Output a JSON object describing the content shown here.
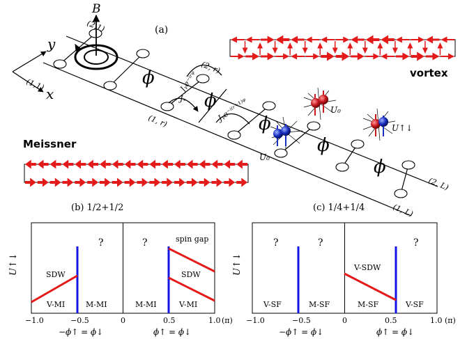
{
  "panel_a": {
    "label": "(a)",
    "axis_b": "B",
    "axis_y": "y",
    "axis_x": "x",
    "flux": "ϕ",
    "site_11": "(1,1)",
    "site_21": "(2,1)",
    "site_1r": "(1, r)",
    "site_2r": "(2, r)",
    "site_1L": "(1, L)",
    "site_2L": "(2, L)",
    "hop_upper": "Jᵧe⁻ⁱʳᵠ",
    "hop_rung": "Jₓ",
    "hop_lower": "Jᵧe⁻ⁱ⁽ʳ⁺¹⁾ᵠ",
    "u0_top": "U₀",
    "u0_bottom": "U₀",
    "u_updown": "U↑↓",
    "vortex_label": "vortex",
    "meissner_label": "Meissner"
  },
  "panel_b": {
    "title": "(b)   1/2+1/2",
    "ylabel": "U↑↓",
    "xlabel_left": "−ϕ↑ = ϕ↓",
    "xlabel_right": "ϕ↑ = ϕ↓",
    "ticks": [
      "−1.0",
      "−0.5",
      "0",
      "0.5",
      "1.0"
    ],
    "unit": "(π)",
    "regions": {
      "q_left": "?",
      "q_right": "?",
      "sdw_left": "SDW",
      "vmi_left": "V-MI",
      "mmi_left": "M-MI",
      "mmi_right": "M-MI",
      "vmi_right": "V-MI",
      "sdw_right": "SDW",
      "spin_gap": "spin gap"
    }
  },
  "panel_c": {
    "title": "(c)   1/4+1/4",
    "ylabel": "U↑↓",
    "xlabel_left": "−ϕ↑ = ϕ↓",
    "xlabel_right": "ϕ↑ = ϕ↓",
    "ticks": [
      "−1.0",
      "−0.5",
      "0",
      "0.5",
      "1.0"
    ],
    "unit": "(π)",
    "regions": {
      "q1": "?",
      "q2": "?",
      "q3": "?",
      "vsf_left": "V-SF",
      "msf_left": "M-SF",
      "vsdw": "V-SDW",
      "msf_right": "M-SF",
      "vsf_right": "V-SF"
    }
  },
  "colors": {
    "phase_line_blue": "#1414e6",
    "phase_line_red": "#e41a1a",
    "current_arrow_red": "#e41a1a",
    "spin_up_ball": "#c8181e",
    "spin_down_ball": "#1b2fc2"
  }
}
